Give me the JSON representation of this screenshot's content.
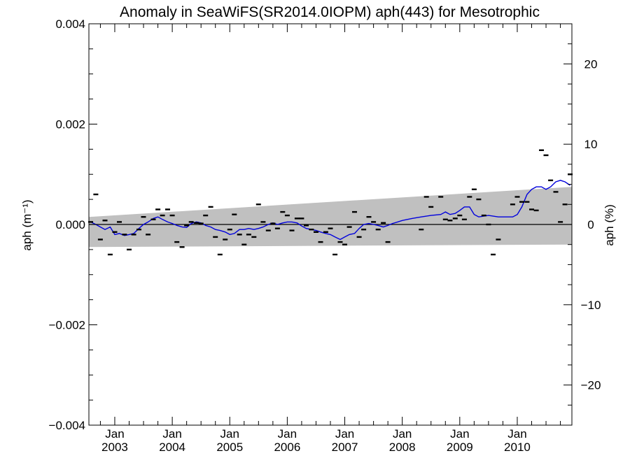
{
  "chart_data": {
    "type": "scatter",
    "title": "Anomaly in SeaWiFS(SR2014.0IOPM) aph(443) for Mesotrophic",
    "ylabel_left": "aph (m⁻¹)",
    "ylabel_right": "aph (%)",
    "xlim": [
      2002.55,
      2010.95
    ],
    "ylim": [
      -0.004,
      0.004
    ],
    "ylim_right": [
      -25,
      25
    ],
    "x_ticks": [
      {
        "x": 2003.0,
        "month": "Jan",
        "year": "2003"
      },
      {
        "x": 2004.0,
        "month": "Jan",
        "year": "2004"
      },
      {
        "x": 2005.0,
        "month": "Jan",
        "year": "2005"
      },
      {
        "x": 2006.0,
        "month": "Jan",
        "year": "2006"
      },
      {
        "x": 2007.0,
        "month": "Jan",
        "year": "2007"
      },
      {
        "x": 2008.0,
        "month": "Jan",
        "year": "2008"
      },
      {
        "x": 2009.0,
        "month": "Jan",
        "year": "2009"
      },
      {
        "x": 2010.0,
        "month": "Jan",
        "year": "2010"
      }
    ],
    "y_ticks_left": [
      {
        "v": 0.004,
        "label": "0.004"
      },
      {
        "v": 0.002,
        "label": "0.002"
      },
      {
        "v": 0.0,
        "label": "0.000"
      },
      {
        "v": -0.002,
        "label": "−0.002"
      },
      {
        "v": -0.004,
        "label": "−0.004"
      }
    ],
    "y_ticks_right": [
      {
        "v": 20,
        "label": "20"
      },
      {
        "v": 10,
        "label": "10"
      },
      {
        "v": 0,
        "label": "0"
      },
      {
        "v": -10,
        "label": "−10"
      },
      {
        "v": -20,
        "label": "−20"
      }
    ],
    "band": {
      "color": "#c0c0c0",
      "upper": [
        [
          2002.55,
          0.00015
        ],
        [
          2010.95,
          0.00075
        ]
      ],
      "lower": [
        [
          2002.55,
          -0.00045
        ],
        [
          2010.95,
          -0.0004
        ]
      ]
    },
    "zero_line": true,
    "grid": false,
    "series": [
      {
        "kind": "points",
        "color": "#000000",
        "points": [
          [
            2002.58,
            5e-05
          ],
          [
            2002.67,
            0.0006
          ],
          [
            2002.75,
            -0.0003
          ],
          [
            2002.83,
            8e-05
          ],
          [
            2002.92,
            -0.0006
          ],
          [
            2003.0,
            -0.00015
          ],
          [
            2003.08,
            5e-05
          ],
          [
            2003.17,
            -0.0002
          ],
          [
            2003.25,
            -0.0005
          ],
          [
            2003.33,
            -0.0002
          ],
          [
            2003.42,
            -0.0001
          ],
          [
            2003.5,
            0.00015
          ],
          [
            2003.58,
            -0.0002
          ],
          [
            2003.67,
            0.0001
          ],
          [
            2003.75,
            0.0003
          ],
          [
            2003.83,
            0.00018
          ],
          [
            2003.92,
            0.0003
          ],
          [
            2004.0,
            0.00018
          ],
          [
            2004.08,
            -0.00035
          ],
          [
            2004.17,
            -0.00045
          ],
          [
            2004.25,
            -2e-05
          ],
          [
            2004.33,
            5e-05
          ],
          [
            2004.42,
            3e-05
          ],
          [
            2004.5,
            2e-05
          ],
          [
            2004.58,
            0.00018
          ],
          [
            2004.67,
            0.00035
          ],
          [
            2004.75,
            -0.00025
          ],
          [
            2004.83,
            -0.0006
          ],
          [
            2004.92,
            -0.0003
          ],
          [
            2005.0,
            -0.0001
          ],
          [
            2005.08,
            0.0002
          ],
          [
            2005.17,
            -0.0002
          ],
          [
            2005.25,
            -0.0004
          ],
          [
            2005.33,
            -0.0002
          ],
          [
            2005.42,
            -0.00025
          ],
          [
            2005.5,
            0.0004
          ],
          [
            2005.58,
            5e-05
          ],
          [
            2005.67,
            -0.00012
          ],
          [
            2005.75,
            2e-05
          ],
          [
            2005.83,
            -8e-05
          ],
          [
            2005.92,
            0.00025
          ],
          [
            2006.0,
            0.00018
          ],
          [
            2006.08,
            -0.00012
          ],
          [
            2006.17,
            0.00012
          ],
          [
            2006.25,
            0.00012
          ],
          [
            2006.33,
            -2e-05
          ],
          [
            2006.42,
            -0.0001
          ],
          [
            2006.5,
            -0.00015
          ],
          [
            2006.58,
            -0.00035
          ],
          [
            2006.67,
            -0.00015
          ],
          [
            2006.75,
            -8e-05
          ],
          [
            2006.83,
            -0.0006
          ],
          [
            2006.92,
            -0.00035
          ],
          [
            2007.0,
            -0.0004
          ],
          [
            2007.08,
            -5e-05
          ],
          [
            2007.17,
            0.00025
          ],
          [
            2007.25,
            -0.00025
          ],
          [
            2007.33,
            -0.0001
          ],
          [
            2007.42,
            0.00015
          ],
          [
            2007.5,
            5e-05
          ],
          [
            2007.58,
            -0.0001
          ],
          [
            2007.67,
            3e-05
          ],
          [
            2007.75,
            -0.00035
          ],
          [
            2008.33,
            -0.0001
          ],
          [
            2008.42,
            0.00055
          ],
          [
            2008.5,
            0.00035
          ],
          [
            2008.67,
            0.00055
          ],
          [
            2008.75,
            0.0001
          ],
          [
            2008.83,
            8e-05
          ],
          [
            2008.92,
            0.00012
          ],
          [
            2009.0,
            0.00018
          ],
          [
            2009.08,
            0.0001
          ],
          [
            2009.17,
            0.00055
          ],
          [
            2009.25,
            0.0007
          ],
          [
            2009.33,
            0.0005
          ],
          [
            2009.42,
            0.00018
          ],
          [
            2009.5,
            0.0
          ],
          [
            2009.58,
            -0.0006
          ],
          [
            2009.67,
            -0.0003
          ],
          [
            2009.92,
            0.0004
          ],
          [
            2010.0,
            0.00055
          ],
          [
            2010.08,
            0.00045
          ],
          [
            2010.17,
            0.00045
          ],
          [
            2010.25,
            0.0003
          ],
          [
            2010.33,
            0.00028
          ],
          [
            2010.42,
            0.00148
          ],
          [
            2010.5,
            0.00138
          ],
          [
            2010.58,
            0.00088
          ],
          [
            2010.67,
            0.00065
          ],
          [
            2010.75,
            5e-05
          ],
          [
            2010.83,
            0.0004
          ],
          [
            2010.92,
            0.001
          ]
        ]
      },
      {
        "kind": "line",
        "color": "#0000dd",
        "points": [
          [
            2002.58,
            5e-05
          ],
          [
            2002.67,
            0.0
          ],
          [
            2002.75,
            -5e-05
          ],
          [
            2002.83,
            -0.0001
          ],
          [
            2002.92,
            -5e-05
          ],
          [
            2003.0,
            -0.0002
          ],
          [
            2003.08,
            -0.00018
          ],
          [
            2003.17,
            -0.00022
          ],
          [
            2003.25,
            -0.0002
          ],
          [
            2003.33,
            -0.00018
          ],
          [
            2003.42,
            -8e-05
          ],
          [
            2003.5,
            0.0
          ],
          [
            2003.58,
            5e-05
          ],
          [
            2003.67,
            0.00012
          ],
          [
            2003.75,
            0.00015
          ],
          [
            2003.83,
            0.0001
          ],
          [
            2003.92,
            5e-05
          ],
          [
            2004.0,
            2e-05
          ],
          [
            2004.08,
            -2e-05
          ],
          [
            2004.17,
            -5e-05
          ],
          [
            2004.25,
            -6e-05
          ],
          [
            2004.33,
            2e-05
          ],
          [
            2004.42,
            5e-05
          ],
          [
            2004.5,
            3e-05
          ],
          [
            2004.58,
            -2e-05
          ],
          [
            2004.67,
            -5e-05
          ],
          [
            2004.75,
            -0.0001
          ],
          [
            2004.83,
            -0.00012
          ],
          [
            2004.92,
            -0.00015
          ],
          [
            2005.0,
            -0.0002
          ],
          [
            2005.08,
            -0.00018
          ],
          [
            2005.17,
            -0.0001
          ],
          [
            2005.25,
            -0.0001
          ],
          [
            2005.33,
            -8e-05
          ],
          [
            2005.42,
            -0.0001
          ],
          [
            2005.5,
            -8e-05
          ],
          [
            2005.58,
            -5e-05
          ],
          [
            2005.67,
            0.0
          ],
          [
            2005.75,
            3e-05
          ],
          [
            2005.83,
            0.0
          ],
          [
            2005.92,
            3e-05
          ],
          [
            2006.0,
            5e-05
          ],
          [
            2006.08,
            5e-05
          ],
          [
            2006.17,
            3e-05
          ],
          [
            2006.25,
            -3e-05
          ],
          [
            2006.33,
            -8e-05
          ],
          [
            2006.42,
            -0.0001
          ],
          [
            2006.5,
            -0.00012
          ],
          [
            2006.58,
            -0.00015
          ],
          [
            2006.67,
            -0.00018
          ],
          [
            2006.75,
            -0.0002
          ],
          [
            2006.83,
            -0.00025
          ],
          [
            2006.92,
            -0.0003
          ],
          [
            2007.0,
            -0.00025
          ],
          [
            2007.08,
            -0.0002
          ],
          [
            2007.17,
            -0.00018
          ],
          [
            2007.25,
            -8e-05
          ],
          [
            2007.33,
            0.0
          ],
          [
            2007.42,
            2e-05
          ],
          [
            2007.5,
            0.0
          ],
          [
            2007.58,
            -2e-05
          ],
          [
            2007.67,
            -5e-05
          ],
          [
            2007.75,
            -2e-05
          ],
          [
            2007.83,
            2e-05
          ],
          [
            2007.92,
            5e-05
          ],
          [
            2008.0,
            8e-05
          ],
          [
            2008.17,
            0.00012
          ],
          [
            2008.33,
            0.00015
          ],
          [
            2008.5,
            0.00018
          ],
          [
            2008.67,
            0.0002
          ],
          [
            2008.75,
            0.00025
          ],
          [
            2008.83,
            0.0002
          ],
          [
            2008.92,
            0.00022
          ],
          [
            2009.0,
            0.00028
          ],
          [
            2009.08,
            0.00035
          ],
          [
            2009.17,
            0.00035
          ],
          [
            2009.25,
            0.0002
          ],
          [
            2009.33,
            0.00015
          ],
          [
            2009.5,
            0.00018
          ],
          [
            2009.67,
            0.00015
          ],
          [
            2009.83,
            0.00015
          ],
          [
            2009.92,
            0.00015
          ],
          [
            2010.0,
            0.0002
          ],
          [
            2010.08,
            0.00035
          ],
          [
            2010.17,
            0.0006
          ],
          [
            2010.25,
            0.0007
          ],
          [
            2010.33,
            0.00075
          ],
          [
            2010.42,
            0.00075
          ],
          [
            2010.5,
            0.0007
          ],
          [
            2010.58,
            0.00075
          ],
          [
            2010.67,
            0.00085
          ],
          [
            2010.75,
            0.00088
          ],
          [
            2010.83,
            0.00085
          ],
          [
            2010.92,
            0.00078
          ]
        ]
      }
    ]
  }
}
